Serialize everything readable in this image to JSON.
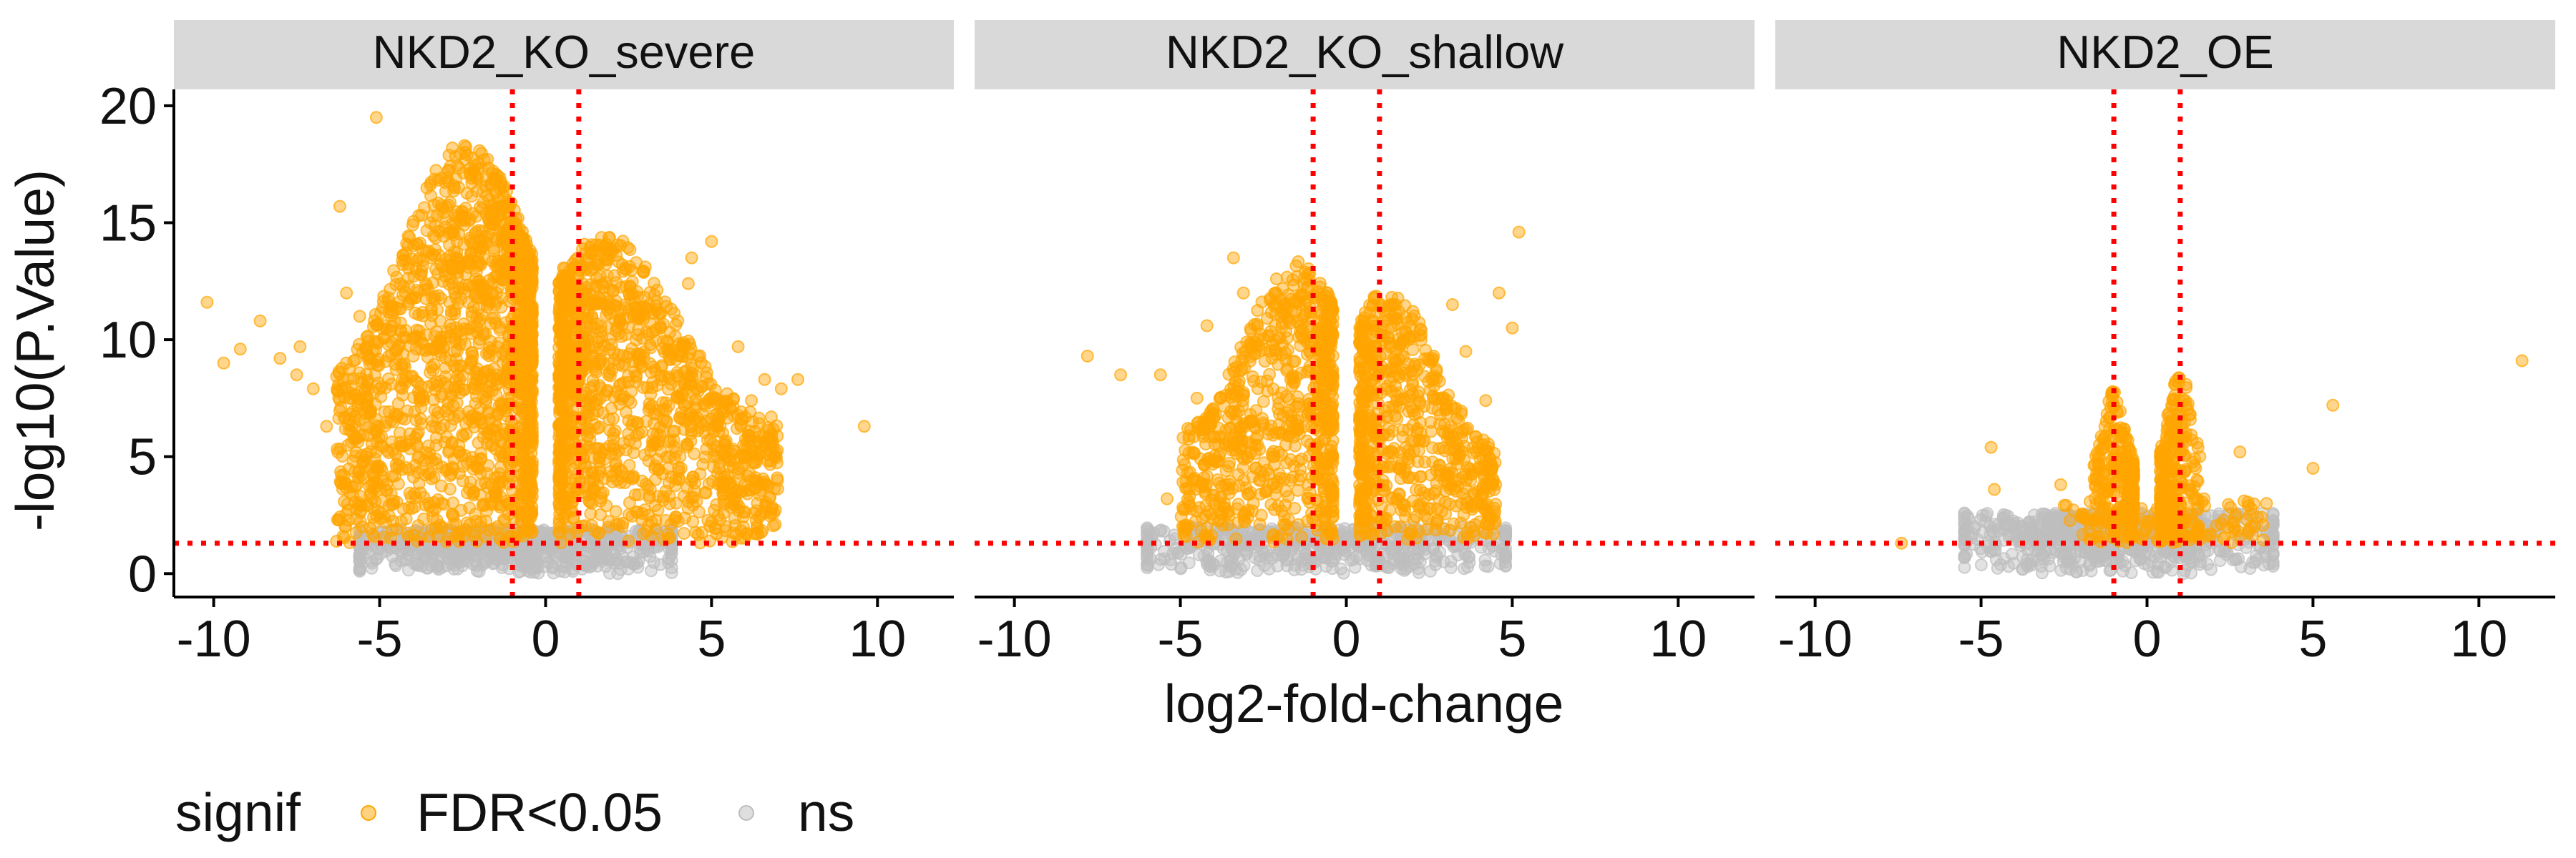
{
  "chart_data": {
    "type": "scatter",
    "xlabel": "log2-fold-change",
    "ylabel": "-log10(P.Value)",
    "xlim": [
      -11.2,
      12.3
    ],
    "ylim": [
      -1.0,
      20.7
    ],
    "x_ticks": [
      -10,
      -5,
      0,
      5,
      10
    ],
    "x_tick_labels": [
      "-10",
      "-5",
      "0",
      "5",
      "10"
    ],
    "y_ticks": [
      0,
      5,
      10,
      15,
      20
    ],
    "y_tick_labels": [
      "0",
      "5",
      "10",
      "15",
      "20"
    ],
    "thresholds": {
      "fold_change_lines": [
        -1,
        1
      ],
      "pvalue_line": 1.3,
      "line_color": "#ff0000",
      "line_style": "dotted"
    },
    "legend": {
      "title": "signif",
      "position": "bottom",
      "entries": [
        {
          "label": "FDR<0.05",
          "color": "#ffa500"
        },
        {
          "label": "ns",
          "color": "#bebebe"
        }
      ]
    },
    "colors": {
      "signif": "#ffa500",
      "ns": "#bebebe",
      "strip": "#d9d9d9"
    },
    "facets": [
      {
        "title": "NKD2_KO_severe",
        "outliers": [
          [
            -10.2,
            11.6
          ],
          [
            -9.7,
            9.0
          ],
          [
            -9.2,
            9.6
          ],
          [
            -8.6,
            10.8
          ],
          [
            -8.0,
            9.2
          ],
          [
            -7.5,
            8.5
          ],
          [
            -7.4,
            9.7
          ],
          [
            -7.0,
            7.9
          ],
          [
            -6.6,
            6.3
          ],
          [
            -6.2,
            15.7
          ],
          [
            -5.1,
            19.5
          ],
          [
            -6.0,
            12.0
          ],
          [
            -5.6,
            11.0
          ],
          [
            4.4,
            13.5
          ],
          [
            5.0,
            14.2
          ],
          [
            4.3,
            12.4
          ],
          [
            5.8,
            9.7
          ],
          [
            6.2,
            7.4
          ],
          [
            6.6,
            8.3
          ],
          [
            7.1,
            7.9
          ],
          [
            7.6,
            8.3
          ],
          [
            6.8,
            6.7
          ],
          [
            9.6,
            6.3
          ],
          [
            5.4,
            5.5
          ],
          [
            6.0,
            5.0
          ]
        ],
        "clusters": [
          {
            "class": "signif",
            "x_min": -6.3,
            "x_max": -0.4,
            "y_min": 1.3,
            "peak": 18.5,
            "peak_x": -2.4,
            "n": 1700
          },
          {
            "class": "signif",
            "x_min": 0.4,
            "x_max": 7.0,
            "y_min": 1.3,
            "peak": 14.5,
            "peak_x": 1.8,
            "n": 1300
          },
          {
            "class": "ns",
            "x_min": -5.6,
            "x_max": 3.8,
            "y_min": 0.0,
            "y_max": 1.9,
            "n": 700
          }
        ]
      },
      {
        "title": "NKD2_KO_shallow",
        "outliers": [
          [
            -7.8,
            9.3
          ],
          [
            -6.8,
            8.5
          ],
          [
            -5.6,
            8.5
          ],
          [
            -4.5,
            7.5
          ],
          [
            -4.2,
            10.6
          ],
          [
            -3.4,
            13.5
          ],
          [
            -3.1,
            12.0
          ],
          [
            5.2,
            14.6
          ],
          [
            4.6,
            12.0
          ],
          [
            5.0,
            10.5
          ],
          [
            3.2,
            11.5
          ],
          [
            3.6,
            9.5
          ],
          [
            4.2,
            7.4
          ],
          [
            4.3,
            4.7
          ],
          [
            4.5,
            3.8
          ],
          [
            -4.6,
            4.0
          ],
          [
            -5.4,
            3.2
          ]
        ],
        "clusters": [
          {
            "class": "signif",
            "x_min": -5.0,
            "x_max": -0.4,
            "y_min": 1.3,
            "peak": 13.5,
            "peak_x": -1.5,
            "n": 800
          },
          {
            "class": "signif",
            "x_min": 0.4,
            "x_max": 4.5,
            "y_min": 1.3,
            "peak": 12.3,
            "peak_x": 1.3,
            "n": 700
          },
          {
            "class": "ns",
            "x_min": -6.0,
            "x_max": 4.8,
            "y_min": 0.0,
            "y_max": 2.0,
            "n": 550
          }
        ]
      },
      {
        "title": "NKD2_OE",
        "outliers": [
          [
            -4.7,
            5.4
          ],
          [
            -4.6,
            3.6
          ],
          [
            11.3,
            9.1
          ],
          [
            5.6,
            7.2
          ],
          [
            5.0,
            4.5
          ],
          [
            2.8,
            5.2
          ],
          [
            -2.6,
            3.8
          ],
          [
            -7.4,
            1.3
          ],
          [
            3.6,
            3.0
          ]
        ],
        "clusters": [
          {
            "class": "signif",
            "x_min": -1.6,
            "x_max": -0.4,
            "y_min": 1.3,
            "peak": 7.8,
            "peak_x": -1.0,
            "n": 250
          },
          {
            "class": "signif",
            "x_min": 0.4,
            "x_max": 1.6,
            "y_min": 1.3,
            "peak": 8.6,
            "peak_x": 1.0,
            "n": 260
          },
          {
            "class": "signif",
            "x_min": -2.5,
            "x_max": 3.5,
            "y_min": 1.3,
            "y_max": 3.2,
            "n": 120
          },
          {
            "class": "ns",
            "x_min": -5.5,
            "x_max": 3.8,
            "y_min": 0.0,
            "y_max": 2.6,
            "n": 650
          }
        ]
      }
    ]
  }
}
